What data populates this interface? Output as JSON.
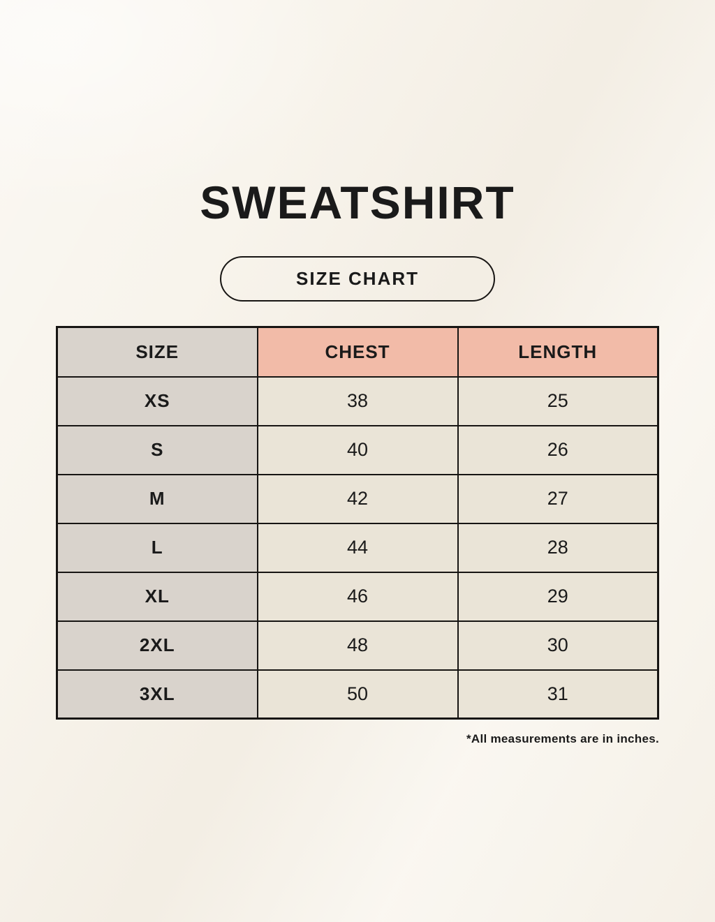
{
  "page": {
    "title": "SWEATSHIRT",
    "badge_label": "SIZE CHART",
    "footnote": "*All measurements are in inches."
  },
  "chart_data": {
    "type": "table",
    "title": "Sweatshirt size chart",
    "columns": [
      "SIZE",
      "CHEST",
      "LENGTH"
    ],
    "rows": [
      [
        "XS",
        "38",
        "25"
      ],
      [
        "S",
        "40",
        "26"
      ],
      [
        "M",
        "42",
        "27"
      ],
      [
        "L",
        "44",
        "28"
      ],
      [
        "XL",
        "46",
        "29"
      ],
      [
        "2XL",
        "48",
        "30"
      ],
      [
        "3XL",
        "50",
        "31"
      ]
    ],
    "units": "inches"
  },
  "colors": {
    "background": "#f8f4ec",
    "gray": "#d9d3cc",
    "pink": "#f2bba8",
    "beige": "#eae4d7",
    "border": "#171513",
    "text": "#1a1a1a"
  }
}
